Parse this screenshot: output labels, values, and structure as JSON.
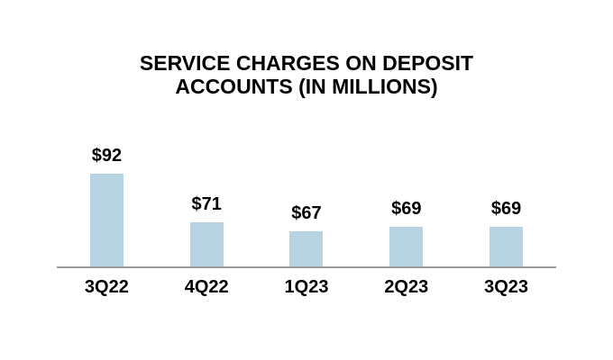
{
  "chart_data": {
    "type": "bar",
    "title": "SERVICE CHARGES ON DEPOSIT ACCOUNTS (IN MILLIONS)",
    "title_lines": [
      "SERVICE CHARGES ON DEPOSIT",
      "ACCOUNTS (IN MILLIONS)"
    ],
    "categories": [
      "3Q22",
      "4Q22",
      "1Q23",
      "2Q23",
      "3Q23"
    ],
    "values": [
      92,
      71,
      67,
      69,
      69
    ],
    "value_labels": [
      "$92",
      "$71",
      "$67",
      "$69",
      "$69"
    ],
    "xlabel": "",
    "ylabel": "",
    "ylim": [
      52,
      100
    ],
    "grid": false,
    "legend": false,
    "colors": {
      "bar_fill": "#B8D3E1",
      "axis_line": "#9C9C9C",
      "text": "#000000",
      "background": "#FFFFFF"
    }
  }
}
